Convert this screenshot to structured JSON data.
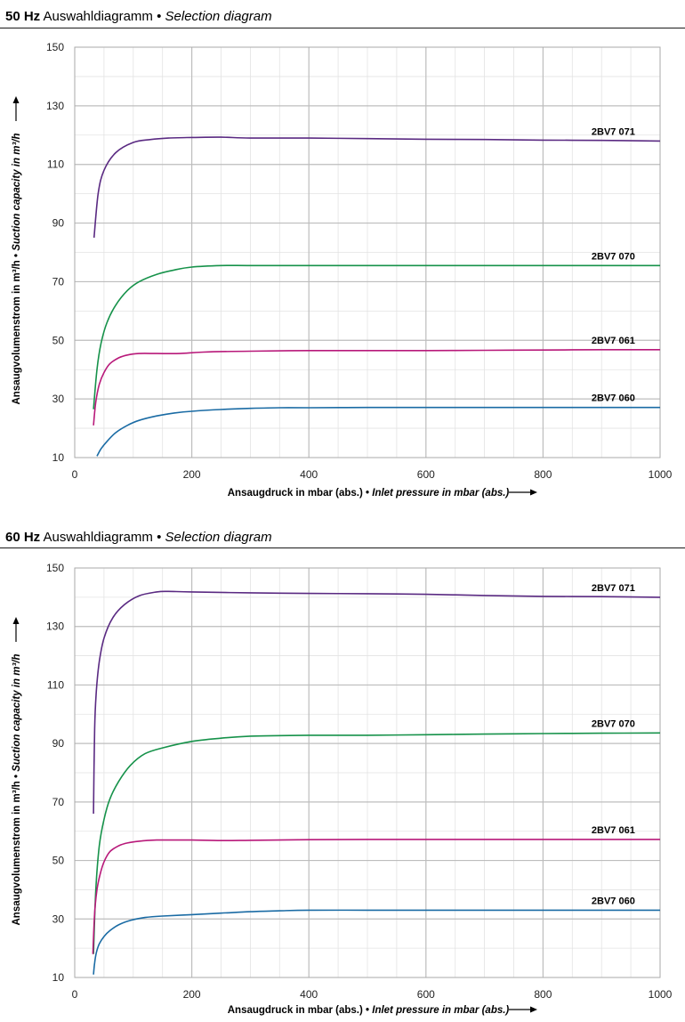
{
  "chart_data": [
    {
      "type": "line",
      "title_bold": "50 Hz",
      "title": "Auswahldiagramm",
      "title_sep": "•",
      "title_en": "Selection diagram",
      "xlabel_de": "Ansaugdruck in mbar (abs.)",
      "xlabel_sep": "•",
      "xlabel_en": "Inlet pressure in mbar (abs.)",
      "ylabel_de": "Ansaugvolumenstrom in m³/h",
      "ylabel_sep": "•",
      "ylabel_en": "Suction capacity in m³/h",
      "xlim": [
        0,
        1000
      ],
      "ylim": [
        10,
        150
      ],
      "xticks": [
        0,
        200,
        400,
        600,
        800,
        1000
      ],
      "yticks": [
        10,
        30,
        50,
        70,
        90,
        110,
        130,
        150
      ],
      "grid": true,
      "series": [
        {
          "name": "2BV7 071",
          "color": "#5a2a82",
          "x": [
            33,
            40,
            50,
            70,
            100,
            130,
            160,
            200,
            250,
            300,
            400,
            500,
            600,
            700,
            800,
            900,
            1000
          ],
          "y": [
            85,
            100,
            108,
            114,
            117.5,
            118.5,
            119,
            119.2,
            119.3,
            119,
            119,
            118.8,
            118.6,
            118.5,
            118.3,
            118.2,
            118
          ]
        },
        {
          "name": "2BV7 070",
          "color": "#16924a",
          "x": [
            32,
            38,
            45,
            55,
            70,
            90,
            110,
            140,
            170,
            200,
            250,
            300,
            400,
            500,
            600,
            700,
            800,
            900,
            1000
          ],
          "y": [
            26.5,
            40,
            49,
            56,
            62,
            67,
            70,
            72.5,
            74,
            75,
            75.5,
            75.5,
            75.5,
            75.5,
            75.5,
            75.5,
            75.5,
            75.5,
            75.5
          ]
        },
        {
          "name": "2BV7 061",
          "color": "#b8197a",
          "x": [
            32,
            36,
            42,
            50,
            60,
            75,
            90,
            110,
            140,
            180,
            220,
            300,
            400,
            500,
            600,
            700,
            800,
            900,
            1000
          ],
          "y": [
            21,
            29,
            35,
            39,
            42,
            44,
            45,
            45.5,
            45.5,
            45.5,
            46,
            46.3,
            46.5,
            46.5,
            46.5,
            46.6,
            46.7,
            46.8,
            46.8
          ]
        },
        {
          "name": "2BV7 060",
          "color": "#1a6ba4",
          "x": [
            38,
            45,
            55,
            70,
            90,
            110,
            140,
            170,
            200,
            250,
            300,
            350,
            400,
            500,
            600,
            700,
            800,
            900,
            1000
          ],
          "y": [
            10.5,
            13,
            15.5,
            18.5,
            21,
            22.7,
            24.2,
            25.2,
            25.8,
            26.4,
            26.8,
            27,
            27,
            27.1,
            27.1,
            27.1,
            27.1,
            27.1,
            27.1
          ]
        }
      ]
    },
    {
      "type": "line",
      "title_bold": "60 Hz",
      "title": "Auswahldiagramm",
      "title_sep": "•",
      "title_en": "Selection diagram",
      "xlabel_de": "Ansaugdruck in mbar (abs.)",
      "xlabel_sep": "•",
      "xlabel_en": "Inlet pressure in mbar (abs.)",
      "ylabel_de": "Ansaugvolumenstrom in m³/h",
      "ylabel_sep": "•",
      "ylabel_en": "Suction capacity in m³/h",
      "xlim": [
        0,
        1000
      ],
      "ylim": [
        10,
        150
      ],
      "xticks": [
        0,
        200,
        400,
        600,
        800,
        1000
      ],
      "yticks": [
        10,
        30,
        50,
        70,
        90,
        110,
        130,
        150
      ],
      "grid": true,
      "series": [
        {
          "name": "2BV7 071",
          "color": "#5a2a82",
          "x": [
            32,
            34,
            37,
            42,
            50,
            65,
            85,
            110,
            140,
            160,
            200,
            300,
            400,
            500,
            600,
            700,
            800,
            900,
            1000
          ],
          "y": [
            66,
            95,
            108,
            118,
            126,
            133,
            137.5,
            140.5,
            141.8,
            142,
            141.8,
            141.5,
            141.3,
            141.2,
            141,
            140.6,
            140.3,
            140.2,
            140
          ]
        },
        {
          "name": "2BV7 070",
          "color": "#16924a",
          "x": [
            32,
            36,
            42,
            50,
            60,
            75,
            95,
            120,
            150,
            200,
            250,
            300,
            400,
            500,
            600,
            700,
            800,
            900,
            1000
          ],
          "y": [
            18,
            40,
            55,
            64,
            71,
            77,
            82.5,
            86.5,
            88.5,
            90.7,
            91.8,
            92.5,
            92.8,
            92.8,
            93,
            93.2,
            93.4,
            93.5,
            93.6
          ]
        },
        {
          "name": "2BV7 061",
          "color": "#b8197a",
          "x": [
            31,
            34,
            38,
            43,
            50,
            60,
            75,
            90,
            110,
            140,
            170,
            200,
            250,
            300,
            400,
            500,
            600,
            700,
            800,
            900,
            1000
          ],
          "y": [
            18,
            32,
            40,
            45,
            49.5,
            53,
            55,
            56,
            56.6,
            57,
            57,
            57,
            56.8,
            56.9,
            57.1,
            57.2,
            57.2,
            57.2,
            57.2,
            57.2,
            57.2
          ]
        },
        {
          "name": "2BV7 060",
          "color": "#1a6ba4",
          "x": [
            32,
            34,
            37,
            42,
            50,
            60,
            75,
            95,
            120,
            150,
            200,
            250,
            300,
            350,
            400,
            500,
            600,
            700,
            800,
            900,
            1000
          ],
          "y": [
            11,
            15,
            18.5,
            21.5,
            24,
            26,
            28,
            29.5,
            30.5,
            31,
            31.5,
            32,
            32.5,
            32.8,
            33,
            33,
            33,
            33,
            33,
            33,
            33
          ]
        }
      ]
    }
  ]
}
